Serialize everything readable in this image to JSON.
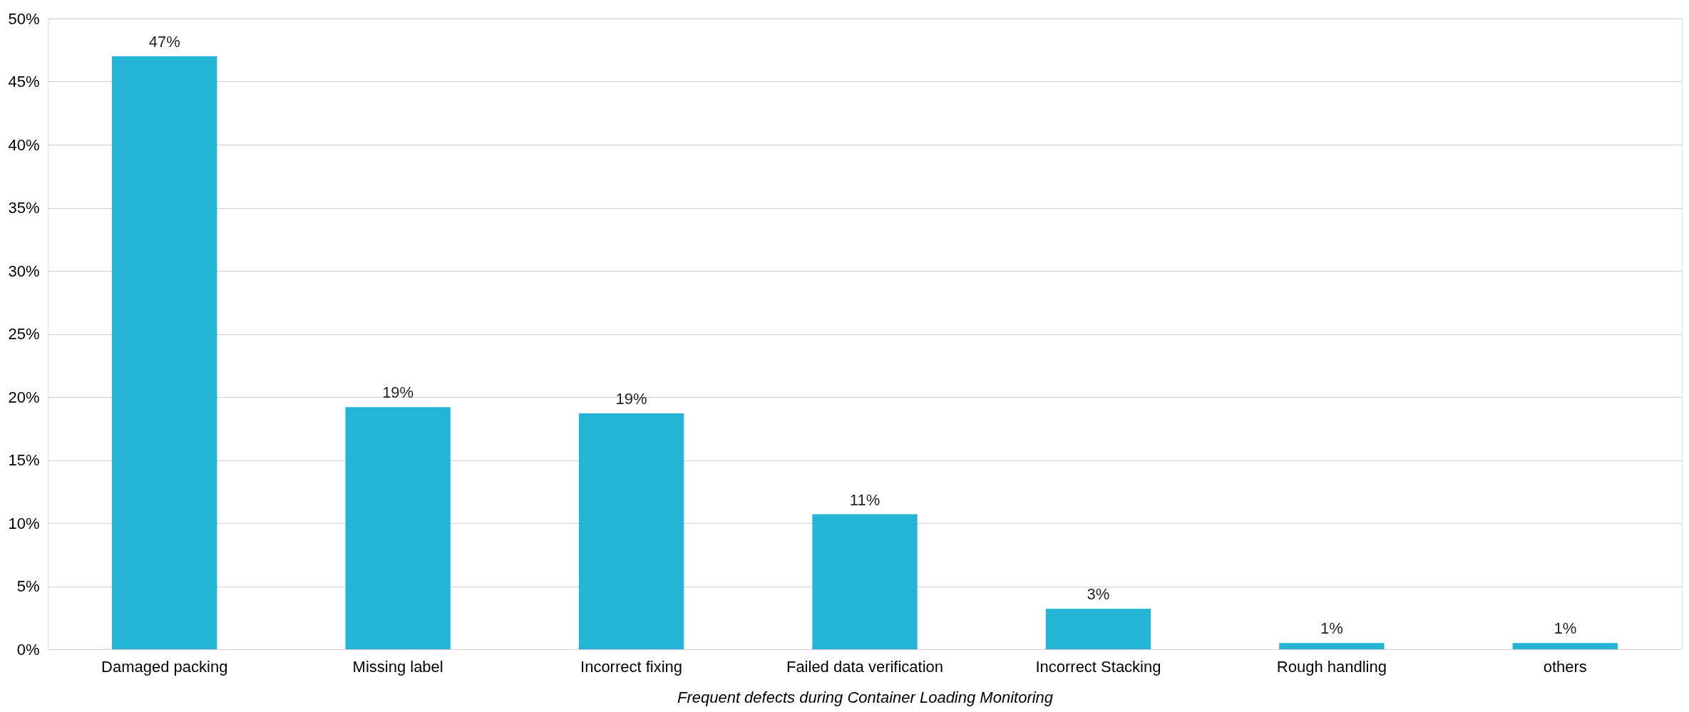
{
  "chart_data": {
    "type": "bar",
    "xlabel": "Frequent defects during Container Loading Monitoring",
    "categories": [
      "Damaged packing",
      "Missing label",
      "Incorrect fixing",
      "Failed data verification",
      "Incorrect Stacking",
      "Rough handling",
      "others"
    ],
    "values": [
      47,
      19.2,
      18.7,
      10.7,
      3.2,
      0.5,
      0.5
    ],
    "value_labels": [
      "47%",
      "19%",
      "19%",
      "11%",
      "3%",
      "1%",
      "1%"
    ],
    "color": "#23b4d6",
    "ylim": [
      0,
      50
    ],
    "yticks": [
      {
        "value": 0,
        "label": "0%"
      },
      {
        "value": 5,
        "label": "5%"
      },
      {
        "value": 10,
        "label": "10%"
      },
      {
        "value": 15,
        "label": "15%"
      },
      {
        "value": 20,
        "label": "20%"
      },
      {
        "value": 25,
        "label": "25%"
      },
      {
        "value": 30,
        "label": "30%"
      },
      {
        "value": 35,
        "label": "35%"
      },
      {
        "value": 40,
        "label": "40%"
      },
      {
        "value": 45,
        "label": "45%"
      },
      {
        "value": 50,
        "label": "50%"
      }
    ],
    "grid": "y"
  }
}
